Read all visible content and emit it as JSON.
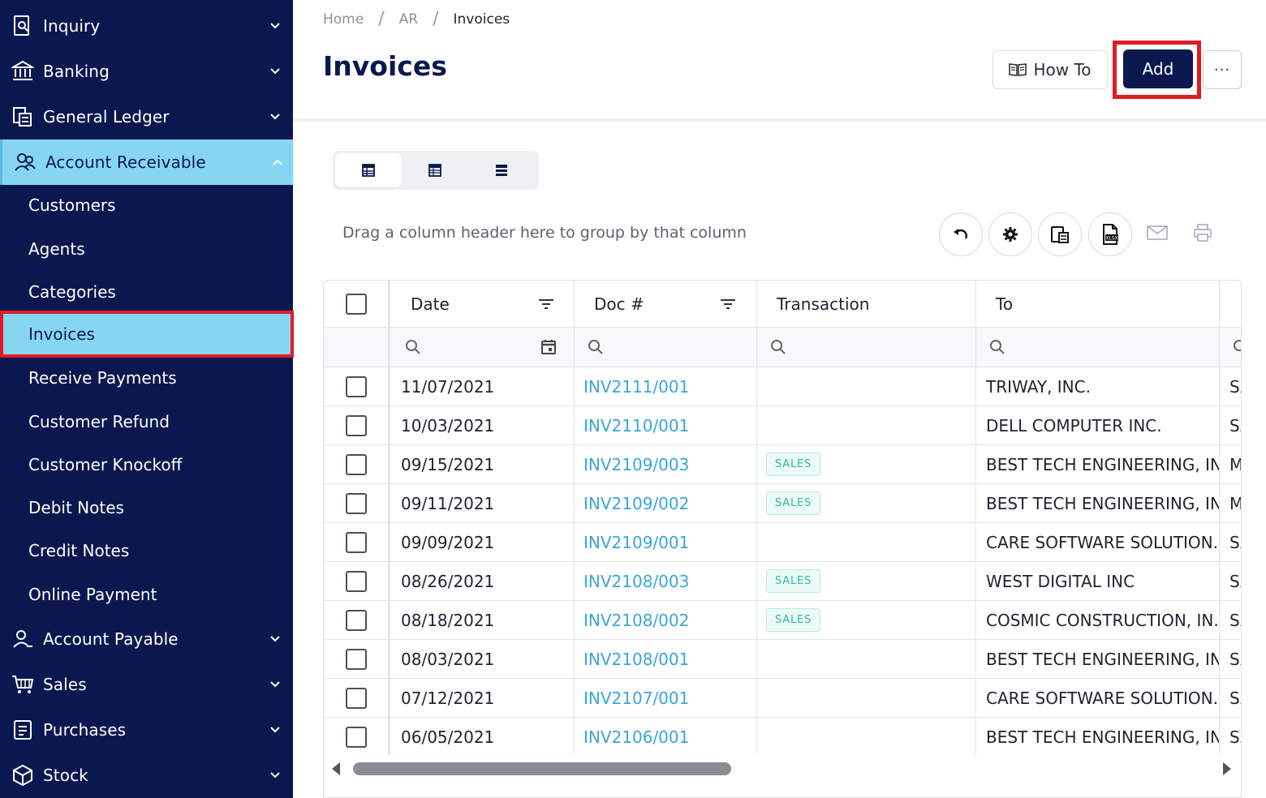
{
  "sidebar": {
    "groups": [
      {
        "label": "Inquiry",
        "icon": "inquiry-icon"
      },
      {
        "label": "Banking",
        "icon": "bank-icon"
      },
      {
        "label": "General Ledger",
        "icon": "ledger-icon"
      },
      {
        "label": "Account Receivable",
        "icon": "receivable-icon"
      },
      {
        "label": "Account Payable",
        "icon": "payable-icon"
      },
      {
        "label": "Sales",
        "icon": "cart-icon"
      },
      {
        "label": "Purchases",
        "icon": "purchases-icon"
      },
      {
        "label": "Stock",
        "icon": "box-icon"
      }
    ],
    "ar_items": [
      "Customers",
      "Agents",
      "Categories",
      "Invoices",
      "Receive Payments",
      "Customer Refund",
      "Customer Knockoff",
      "Debit Notes",
      "Credit Notes",
      "Online Payment"
    ]
  },
  "breadcrumb": {
    "home": "Home",
    "sep": "/",
    "section": "AR",
    "current": "Invoices"
  },
  "page": {
    "title": "Invoices",
    "howto_label": "How To",
    "add_label": "Add",
    "more_label": "···"
  },
  "grid": {
    "group_hint": "Drag a column header here to group by that column",
    "columns": {
      "date": "Date",
      "doc": "Doc #",
      "transaction": "Transaction",
      "to": "To"
    },
    "rows": [
      {
        "date": "11/07/2021",
        "doc": "INV2111/001",
        "tx": "",
        "to": "TRIWAY, INC.",
        "next": "SA"
      },
      {
        "date": "10/03/2021",
        "doc": "INV2110/001",
        "tx": "",
        "to": "DELL COMPUTER INC.",
        "next": "SA"
      },
      {
        "date": "09/15/2021",
        "doc": "INV2109/003",
        "tx": "SALES",
        "to": "BEST TECH ENGINEERING, INC.",
        "next": "M"
      },
      {
        "date": "09/11/2021",
        "doc": "INV2109/002",
        "tx": "SALES",
        "to": "BEST TECH ENGINEERING, INC.",
        "next": "M"
      },
      {
        "date": "09/09/2021",
        "doc": "INV2109/001",
        "tx": "",
        "to": "CARE SOFTWARE SOLUTION...",
        "next": "SA"
      },
      {
        "date": "08/26/2021",
        "doc": "INV2108/003",
        "tx": "SALES",
        "to": "WEST DIGITAL INC",
        "next": "SA"
      },
      {
        "date": "08/18/2021",
        "doc": "INV2108/002",
        "tx": "SALES",
        "to": "COSMIC CONSTRUCTION, IN...",
        "next": "SA"
      },
      {
        "date": "08/03/2021",
        "doc": "INV2108/001",
        "tx": "",
        "to": "BEST TECH ENGINEERING, INC.",
        "next": "SA"
      },
      {
        "date": "07/12/2021",
        "doc": "INV2107/001",
        "tx": "",
        "to": "CARE SOFTWARE SOLUTION...",
        "next": "SA"
      },
      {
        "date": "06/05/2021",
        "doc": "INV2106/001",
        "tx": "",
        "to": "BEST TECH ENGINEERING, INC.",
        "next": "SA"
      }
    ]
  },
  "colors": {
    "sidebar_bg": "#0b1850",
    "active_bg": "#86d6f2",
    "highlight": "#e01c24",
    "link": "#3aa6d8",
    "badge": "#37b7a5"
  }
}
